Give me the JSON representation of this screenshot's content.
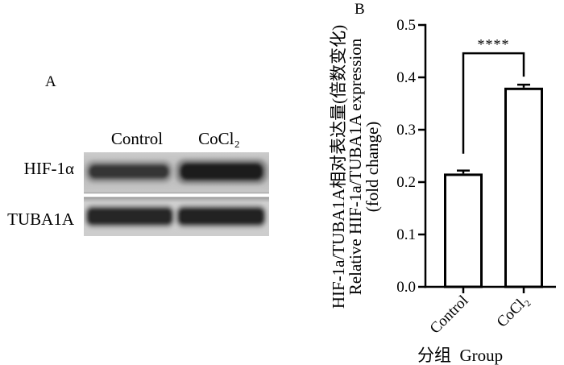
{
  "figure": {
    "panel_a_label": "A",
    "panel_b_label": "B"
  },
  "blot": {
    "lanes": [
      "Control",
      "CoCl₂"
    ],
    "rows": [
      "HIF-1α",
      "TUBA1A"
    ]
  },
  "chart_data": {
    "type": "bar",
    "categories": [
      "Control",
      "CoCl₂"
    ],
    "series": [
      {
        "values": [
          0.214,
          0.378
        ],
        "errors": [
          0.008,
          0.008
        ]
      }
    ],
    "xlabel": "分组  Group",
    "ylabel": [
      "HIF-1a/TUBA1A相对表达量(倍数变化)",
      "Relative HIF-1a/TUBA1A expression",
      "(fold change)"
    ],
    "ylim": [
      0,
      0.5
    ],
    "yticks": [
      "0.0",
      "0.1",
      "0.2",
      "0.3",
      "0.4",
      "0.5"
    ],
    "grid": false,
    "annotations": [
      {
        "text": "****",
        "between": [
          0,
          1
        ]
      }
    ],
    "colors": {
      "bar_fill": "#ffffff",
      "bar_stroke": "#000000"
    }
  }
}
